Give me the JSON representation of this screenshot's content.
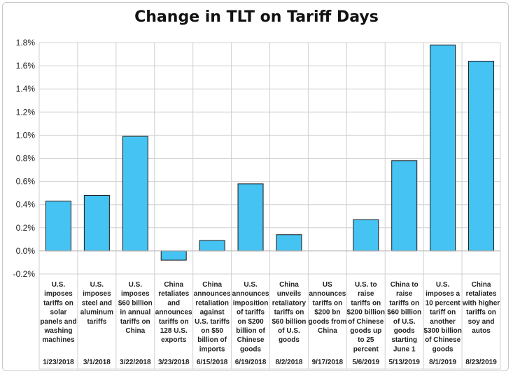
{
  "chart_data": {
    "type": "bar",
    "title": "Change in TLT on Tariff Days",
    "xlabel": "",
    "ylabel": "",
    "ylim": [
      -0.2,
      1.8
    ],
    "ytick_step": 0.2,
    "ytick_suffix": "%",
    "grid": true,
    "bar_color": "#45c3f2",
    "categories": [
      {
        "desc": [
          "U.S.",
          "imposes",
          "tariffs on",
          "solar",
          "panels and",
          "washing",
          "machines"
        ],
        "date": "1/23/2018",
        "value": 0.43
      },
      {
        "desc": [
          "U.S.",
          "imposes",
          "steel and",
          "aluminum",
          "tariffs"
        ],
        "date": "3/1/2018",
        "value": 0.48
      },
      {
        "desc": [
          "U.S.",
          "imposes",
          "$60 billion",
          "in annual",
          "tariffs on",
          "China"
        ],
        "date": "3/22/2018",
        "value": 0.99
      },
      {
        "desc": [
          "China",
          "retaliates",
          "and",
          "announces",
          "tariffs on",
          "128 U.S.",
          "exports"
        ],
        "date": "3/23/2018",
        "value": -0.08
      },
      {
        "desc": [
          "China",
          "announces",
          "retaliation",
          "against",
          "U.S. tariffs",
          "on $50",
          "billion of",
          "imports"
        ],
        "date": "6/15/2018",
        "value": 0.09
      },
      {
        "desc": [
          "U.S.",
          "announces",
          "imposition",
          "of tariffs",
          "on $200",
          "billion of",
          "Chinese",
          "goods"
        ],
        "date": "6/19/2018",
        "value": 0.58
      },
      {
        "desc": [
          "China",
          "unveils",
          "retaliatory",
          "tariffs on",
          "$60 billion",
          "of U.S.",
          "goods"
        ],
        "date": "8/2/2018",
        "value": 0.14
      },
      {
        "desc": [
          "US",
          "announces",
          "tariffs on",
          "$200 bn",
          "goods from",
          "China"
        ],
        "date": "9/17/2018",
        "value": 0.0
      },
      {
        "desc": [
          "U.S. to",
          "raise",
          "tariffs on",
          "$200 billion",
          "of Chinese",
          "goods up",
          "to 25",
          "percent"
        ],
        "date": "5/6/2019",
        "value": 0.27
      },
      {
        "desc": [
          "China to",
          "raise",
          "tariffs on",
          "$60 billion",
          "of U.S.",
          "goods",
          "starting",
          "June 1"
        ],
        "date": "5/13/2019",
        "value": 0.78
      },
      {
        "desc": [
          "U.S.",
          "imposes a",
          "10 percent",
          "tariff on",
          "another",
          "$300 billion",
          "of Chinese",
          "goods"
        ],
        "date": "8/1/2019",
        "value": 1.78
      },
      {
        "desc": [
          "China",
          "retaliates",
          "with higher",
          "tariffs on",
          "soy and",
          "autos"
        ],
        "date": "8/23/2019",
        "value": 1.64
      }
    ]
  }
}
